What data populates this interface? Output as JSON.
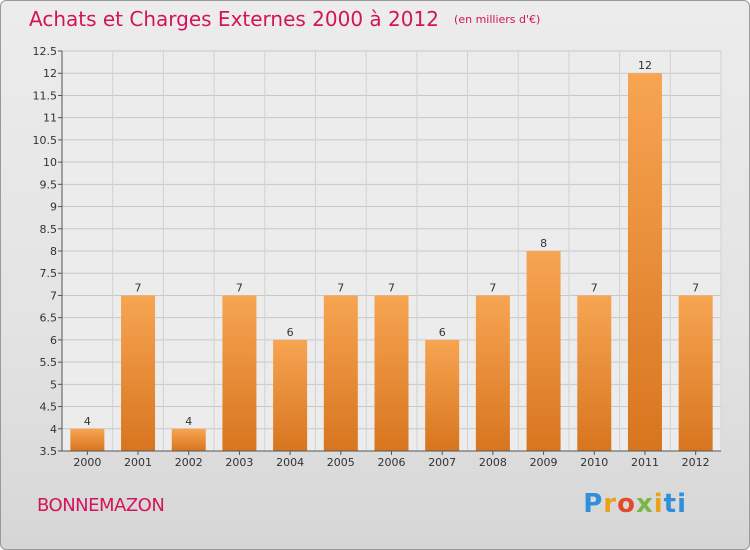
{
  "header": {
    "title": "Achats et Charges Externes 2000 à 2012",
    "unit": "(en milliers d'€)"
  },
  "footer": {
    "commune": "BONNEMAZON",
    "brand": "Proxiti"
  },
  "colors": {
    "accent": "#d4145a",
    "bar_light": "#f7a552",
    "bar_dark": "#d8751f"
  },
  "chart_data": {
    "type": "bar",
    "title": "Achats et Charges Externes 2000 à 2012",
    "subtitle": "(en milliers d'€)",
    "categories": [
      "2000",
      "2001",
      "2002",
      "2003",
      "2004",
      "2005",
      "2006",
      "2007",
      "2008",
      "2009",
      "2010",
      "2011",
      "2012"
    ],
    "values": [
      4,
      7,
      4,
      7,
      6,
      7,
      7,
      6,
      7,
      8,
      7,
      12,
      7
    ],
    "data_labels": [
      "4",
      "7",
      "4",
      "7",
      "6",
      "7",
      "7",
      "6",
      "7",
      "8",
      "7",
      "12",
      "7"
    ],
    "ylim": [
      3.5,
      12.5
    ],
    "yticks": [
      "3.5",
      "4",
      "4.5",
      "5",
      "5.5",
      "6",
      "6.5",
      "7",
      "7.5",
      "8",
      "8.5",
      "9",
      "9.5",
      "10",
      "10.5",
      "11",
      "11.5",
      "12",
      "12.5"
    ],
    "grid": true,
    "legend": "none"
  }
}
